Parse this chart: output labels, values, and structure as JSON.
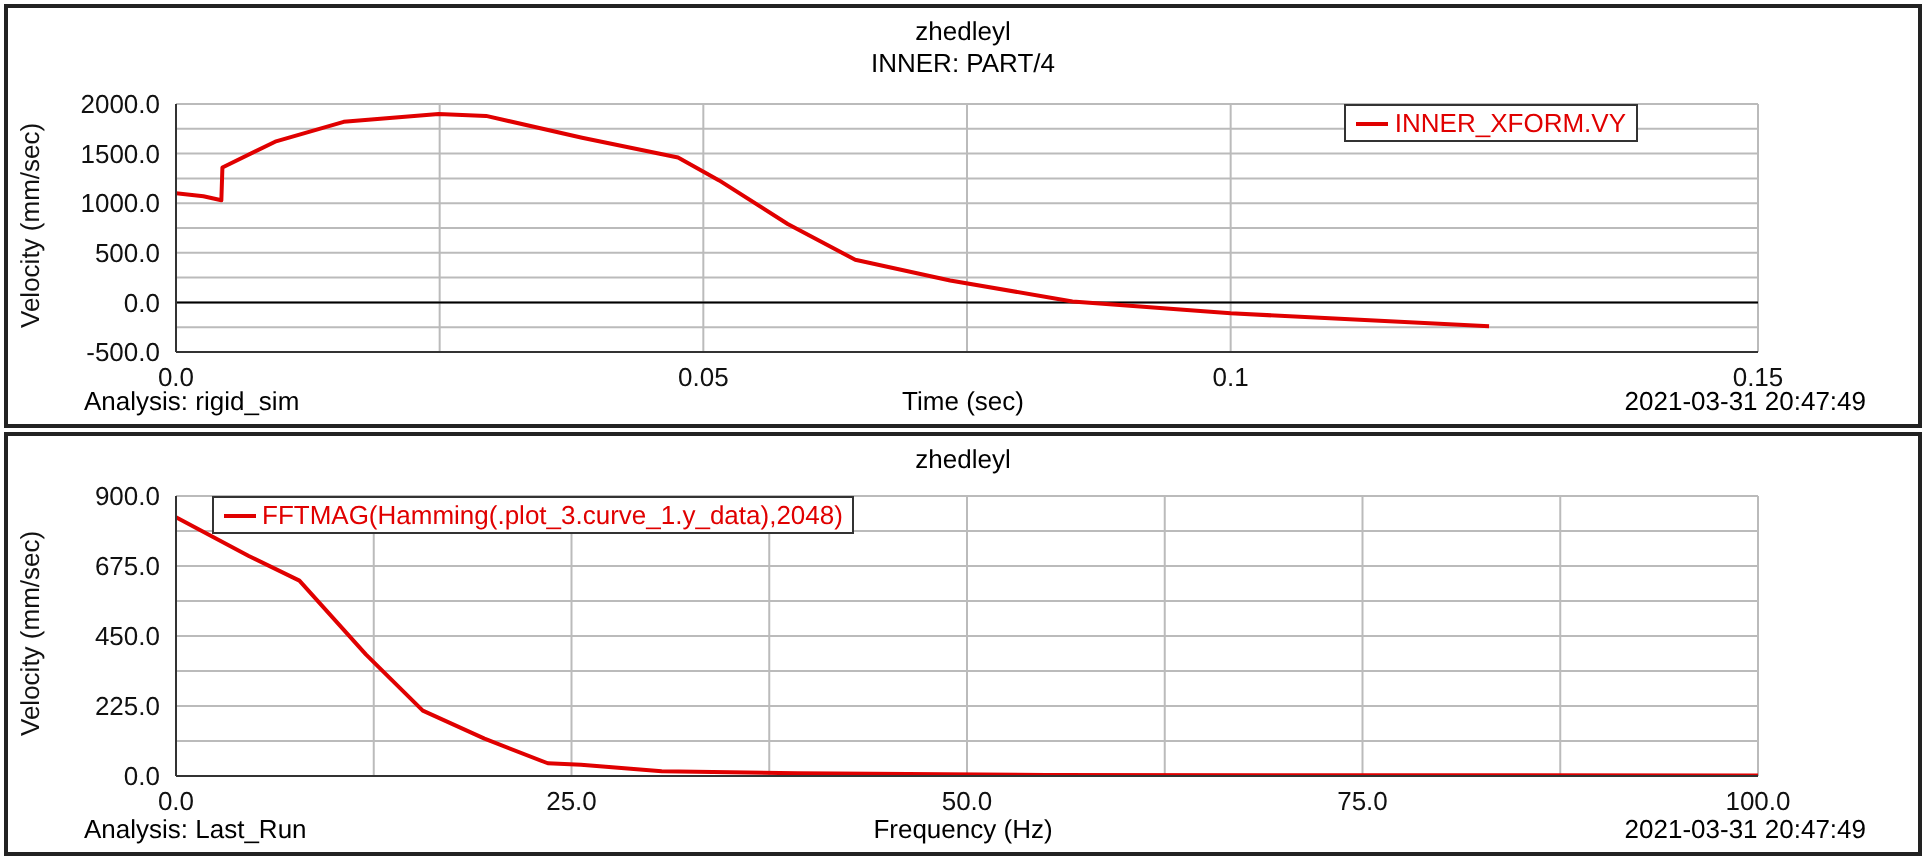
{
  "chart_data": [
    {
      "type": "line",
      "title": "zhedleyl",
      "subtitle": "INNER: PART/4",
      "xlabel": "Time (sec)",
      "ylabel": "Velocity (mm/sec)",
      "x": [
        0,
        0.0026,
        0.0043,
        0.0044,
        0.0094,
        0.0159,
        0.0249,
        0.0294,
        0.0385,
        0.0476,
        0.0515,
        0.058,
        0.0644,
        0.0734,
        0.085,
        0.1,
        0.1245
      ],
      "series": [
        {
          "name": "INNER_XFORM.VY",
          "color": "#e00000",
          "values": [
            1100,
            1070,
            1030,
            1360,
            1620,
            1820,
            1900,
            1880,
            1660,
            1460,
            1230,
            790,
            430,
            220,
            10,
            -110,
            -240
          ]
        }
      ],
      "xlim": [
        0,
        0.15
      ],
      "xticks": [
        {
          "value": 0,
          "label": "0.0"
        },
        {
          "value": 0.025,
          "label": null
        },
        0.05,
        {
          "value": 0.075,
          "label": null
        },
        0.1,
        0.15
      ],
      "ylim": [
        -500,
        2000
      ],
      "yticks": [
        {
          "value": -500,
          "label": "-500.0"
        },
        {
          "value": -250,
          "label": null
        },
        {
          "value": 0,
          "label": "0.0"
        },
        {
          "value": 250,
          "label": null
        },
        {
          "value": 500,
          "label": "500.0"
        },
        {
          "value": 750,
          "label": null
        },
        {
          "value": 1000,
          "label": "1000.0"
        },
        {
          "value": 1250,
          "label": null
        },
        {
          "value": 1500,
          "label": "1500.0"
        },
        {
          "value": 1750,
          "label": null
        },
        {
          "value": 2000,
          "label": "2000.0"
        }
      ],
      "ref_lines": [
        {
          "axis": "y",
          "value": 0,
          "color": "#000000"
        }
      ],
      "annotations": [
        "Analysis:  rigid_sim",
        "2021-03-31 20:47:49"
      ],
      "grid": true,
      "legend": "top right",
      "marker": "none",
      "line_style": "solid"
    },
    {
      "type": "line",
      "title": "zhedleyl",
      "xlabel": "Frequency (Hz)",
      "ylabel": "Velocity (mm/sec)",
      "x": [
        0,
        4.6,
        7.8,
        12.0,
        15.6,
        19.5,
        23.5,
        25.6,
        30.7,
        39.3,
        55,
        100
      ],
      "series": [
        {
          "name": "FFTMAG(Hamming(.plot_3.curve_1.y_data),2048)",
          "color": "#e00000",
          "values": [
            832,
            707,
            628,
            391,
            210,
            120,
            41,
            36,
            15,
            9,
            3,
            2
          ]
        }
      ],
      "xlim": [
        0,
        100
      ],
      "xticks": [
        {
          "value": 0,
          "label": "0.0"
        },
        {
          "value": 12.5,
          "label": null
        },
        {
          "value": 25,
          "label": "25.0"
        },
        {
          "value": 37.5,
          "label": null
        },
        {
          "value": 50,
          "label": "50.0"
        },
        {
          "value": 62.5,
          "label": null
        },
        {
          "value": 75,
          "label": "75.0"
        },
        {
          "value": 87.5,
          "label": null
        },
        {
          "value": 100,
          "label": "100.0"
        }
      ],
      "ylim": [
        0,
        900
      ],
      "yticks": [
        {
          "value": 0,
          "label": "0.0"
        },
        {
          "value": 112.5,
          "label": null
        },
        {
          "value": 225,
          "label": "225.0"
        },
        {
          "value": 337.5,
          "label": null
        },
        {
          "value": 450,
          "label": "450.0"
        },
        {
          "value": 562.5,
          "label": null
        },
        {
          "value": 675,
          "label": "675.0"
        },
        {
          "value": 787.5,
          "label": null
        },
        {
          "value": 900,
          "label": "900.0"
        }
      ],
      "annotations": [
        "Analysis:  Last_Run",
        "2021-03-31 20:47:49"
      ],
      "grid": true,
      "legend": "top left",
      "marker": "none",
      "line_style": "solid"
    }
  ]
}
